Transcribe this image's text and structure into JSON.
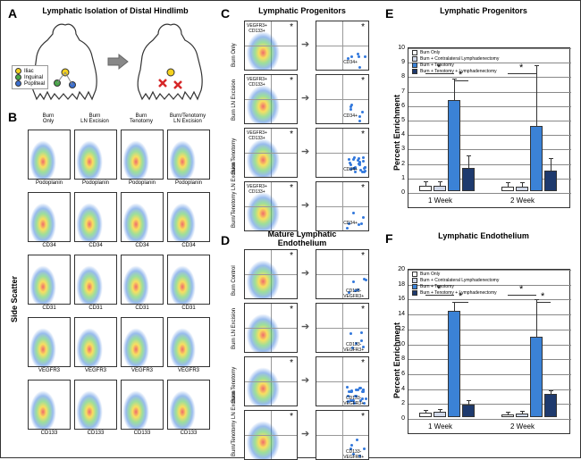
{
  "panels": {
    "A": {
      "label": "A",
      "title": "Lymphatic Isolation of Distal Hindlimb",
      "legend": {
        "iliac": "Iliac",
        "inguinal": "Inguinal",
        "popliteal": "Popliteal"
      },
      "colors": {
        "iliac": "#f5d21e",
        "inguinal": "#4aa84a",
        "popliteal": "#3b6fd1",
        "mouse_outline": "#333333",
        "arrow": "#888888",
        "excision_mark": "#d62728"
      }
    },
    "B": {
      "label": "B",
      "column_headers": [
        "Burn\nOnly",
        "Burn\nLN Excision",
        "Burn\nTenotomy",
        "Burn/Tenotomy\nLN Excision"
      ],
      "row_markers": [
        "Podoplanin",
        "CD34",
        "CD31",
        "VEGFR3",
        "CD133"
      ],
      "y_axis": "Side Scatter",
      "scatter_colors": {
        "core": "#ea2d2d",
        "mid": "#f5d21e",
        "outer": "#5ac85a",
        "edge": "#3278dc"
      }
    },
    "C": {
      "label": "C",
      "title": "Lymphatic Progenitors",
      "conditions": [
        "Burn\nOnly",
        "Burn\nLN Excision",
        "Burn\nTenotomy",
        "Burn/Tenotomy\nLN Excision"
      ],
      "left_gate": "VEGFR3+\nCD133+",
      "right_gate": "CD34+"
    },
    "D": {
      "label": "D",
      "title": "Mature Lymphatic\nEndothelium",
      "conditions": [
        "Burn\nControl",
        "Burn\nLN Excision",
        "Burn\nTenotomy",
        "Burn/Tenotomy\nLN Excision"
      ],
      "right_gate": "CD133-\nVEGFR3+"
    },
    "E": {
      "label": "E",
      "title": "Lymphatic Progenitors",
      "y_axis": "Percent Enrichment",
      "y_max": 10,
      "y_step": 1,
      "x_groups": [
        "1 Week",
        "2 Week"
      ],
      "legend": [
        "Burn Only",
        "Burn + Contralateral Lymphadenectomy",
        "Burn + Tenotomy",
        "Burn + Tenotomy + Lymphadenectomy"
      ],
      "colors": [
        "#ffffff",
        "#d0d8e8",
        "#3b82d6",
        "#1e3a6e"
      ],
      "data": {
        "1 Week": {
          "values": [
            0.4,
            0.4,
            6.3,
            1.6
          ],
          "errors": [
            0.3,
            0.3,
            1.5,
            0.9
          ]
        },
        "2 Week": {
          "values": [
            0.3,
            0.3,
            4.5,
            1.4
          ],
          "errors": [
            0.3,
            0.3,
            4.2,
            0.9
          ]
        }
      },
      "sig_pairs": [
        [
          "1W-0",
          "1W-2"
        ],
        [
          "1W-2",
          "1W-3"
        ],
        [
          "2W-0",
          "2W-2"
        ]
      ]
    },
    "F": {
      "label": "F",
      "title": "Lymphatic Endothelium",
      "y_axis": "Percent Enrichment",
      "y_max": 20,
      "y_step": 2,
      "x_groups": [
        "1 Week",
        "2 Week"
      ],
      "legend": [
        "Burn Only",
        "Burn + Contralateral Lymphadenectomy",
        "Burn + Tenotomy",
        "Burn + Tenotomy + Lymphadenectomy"
      ],
      "colors": [
        "#ffffff",
        "#d0d8e8",
        "#3b82d6",
        "#1e3a6e"
      ],
      "data": {
        "1 Week": {
          "values": [
            0.6,
            0.7,
            14.3,
            1.7
          ],
          "errors": [
            0.4,
            0.4,
            1.2,
            0.6
          ]
        },
        "2 Week": {
          "values": [
            0.4,
            0.5,
            10.8,
            3.1
          ],
          "errors": [
            0.3,
            0.3,
            5.0,
            0.5
          ]
        }
      },
      "sig_pairs": [
        [
          "1W-0",
          "1W-2"
        ],
        [
          "1W-2",
          "1W-3"
        ],
        [
          "2W-0",
          "2W-2"
        ],
        [
          "2W-2",
          "2W-3"
        ]
      ]
    }
  }
}
